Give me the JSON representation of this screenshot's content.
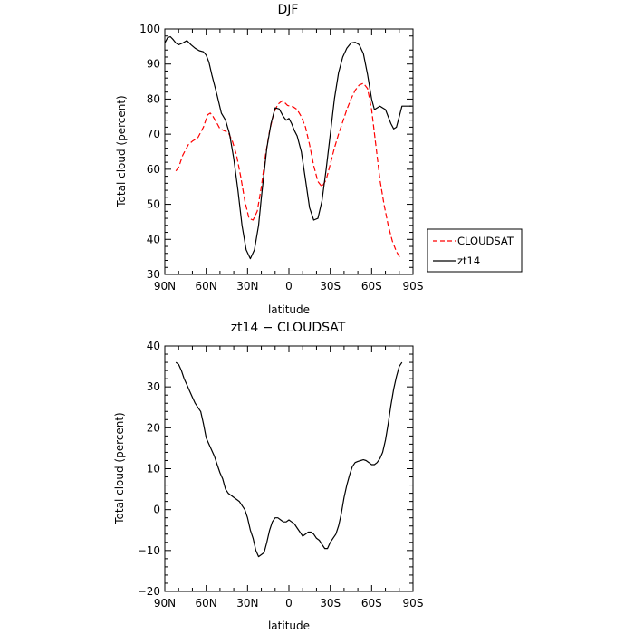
{
  "chart_data": [
    {
      "type": "line",
      "title": "DJF",
      "xlabel": "latitude",
      "ylabel": "Total cloud (percent)",
      "xlim": [
        90,
        -90
      ],
      "ylim": [
        30,
        100
      ],
      "x_ticks": [
        90,
        60,
        30,
        0,
        -30,
        -60,
        -90
      ],
      "x_tick_labels": [
        "90N",
        "60N",
        "30N",
        "0",
        "30S",
        "60S",
        "90S"
      ],
      "y_ticks": [
        30,
        40,
        50,
        60,
        70,
        80,
        90,
        100
      ],
      "y_tick_labels": [
        "30",
        "40",
        "50",
        "60",
        "70",
        "80",
        "90",
        "100"
      ],
      "grid": false,
      "legend": "right",
      "series": [
        {
          "name": "CLOUDSAT",
          "color": "#ff0000",
          "dash": "dashed",
          "x": [
            82,
            80,
            77,
            73,
            70,
            66,
            62,
            59,
            57,
            55,
            52,
            50,
            47,
            44,
            41,
            38,
            35,
            32,
            29,
            26,
            23,
            20,
            17,
            14,
            11,
            8,
            5,
            3,
            1,
            -1,
            -3,
            -6,
            -9,
            -12,
            -15,
            -18,
            -21,
            -24,
            -27,
            -30,
            -33,
            -36,
            -39,
            -42,
            -45,
            -48,
            -51,
            -54,
            -57,
            -60,
            -63,
            -66,
            -69,
            -72,
            -75,
            -78,
            -81
          ],
          "y": [
            59.5,
            60.5,
            64,
            67,
            68,
            69,
            72,
            75.5,
            76,
            75,
            73,
            71.5,
            71,
            70.5,
            68,
            64,
            58,
            51,
            46,
            45.5,
            48,
            55,
            64,
            71,
            76,
            78.5,
            79.5,
            79,
            78.2,
            78,
            77.8,
            77,
            75,
            72,
            67,
            61,
            56.5,
            55,
            57,
            61.5,
            66,
            70,
            73.5,
            77,
            80,
            82.5,
            84,
            84.5,
            83,
            77,
            67,
            57,
            50,
            44,
            39.5,
            36.5,
            34.5
          ]
        },
        {
          "name": "zt14",
          "color": "#000000",
          "dash": "solid",
          "x": [
            90,
            88,
            86,
            84,
            82,
            80,
            77,
            74,
            71,
            68,
            65,
            62,
            60,
            58,
            56,
            54,
            52,
            49,
            46,
            43,
            40,
            37,
            34,
            31,
            28,
            25,
            22,
            20,
            18,
            16,
            13,
            10,
            7,
            4,
            2,
            0,
            -2,
            -4,
            -6,
            -9,
            -12,
            -15,
            -18,
            -21,
            -24,
            -27,
            -30,
            -33,
            -36,
            -39,
            -42,
            -45,
            -48,
            -51,
            -54,
            -57,
            -60,
            -62,
            -64,
            -66,
            -68,
            -70,
            -72,
            -74,
            -76,
            -78,
            -80,
            -82,
            -84,
            -86,
            -88,
            -89
          ],
          "y": [
            96,
            97.5,
            97.8,
            97,
            96,
            95.5,
            96,
            96.7,
            95.5,
            94.5,
            93.8,
            93.5,
            92.5,
            90.5,
            87,
            84,
            81,
            76,
            74,
            70,
            63,
            54,
            44,
            37,
            34.5,
            37,
            44,
            52,
            59,
            66,
            73,
            77.5,
            77.2,
            75,
            74,
            74.5,
            73,
            71,
            69.5,
            65,
            57,
            49,
            45.5,
            46,
            51,
            60,
            70,
            80,
            87.5,
            92,
            94.5,
            96,
            96.2,
            95.5,
            93,
            87,
            80,
            77,
            77.5,
            78,
            77.5,
            77,
            75,
            73,
            71.5,
            72,
            75,
            78,
            78,
            78,
            78,
            78
          ]
        }
      ]
    },
    {
      "type": "line",
      "title": "zt14 − CLOUDSAT",
      "xlabel": "latitude",
      "ylabel": "Total cloud (percent)",
      "xlim": [
        90,
        -90
      ],
      "ylim": [
        -20,
        40
      ],
      "x_ticks": [
        90,
        60,
        30,
        0,
        -30,
        -60,
        -90
      ],
      "x_tick_labels": [
        "90N",
        "60N",
        "30N",
        "0",
        "30S",
        "60S",
        "90S"
      ],
      "y_ticks": [
        -20,
        -10,
        0,
        10,
        20,
        30,
        40
      ],
      "y_tick_labels": [
        "−20",
        "−10",
        "0",
        "10",
        "20",
        "30",
        "40"
      ],
      "grid": false,
      "series": [
        {
          "color": "#000000",
          "dash": "solid",
          "x": [
            82,
            80,
            78,
            76,
            74,
            72,
            70,
            68,
            66,
            64,
            62,
            60,
            58,
            56,
            54,
            52,
            50,
            48,
            46,
            44,
            42,
            40,
            38,
            36,
            34,
            32,
            30,
            28,
            26,
            24,
            22,
            20,
            18,
            16,
            14,
            12,
            10,
            8,
            6,
            4,
            2,
            0,
            -2,
            -4,
            -6,
            -8,
            -10,
            -12,
            -14,
            -16,
            -18,
            -20,
            -22,
            -24,
            -26,
            -28,
            -30,
            -32,
            -34,
            -36,
            -38,
            -40,
            -42,
            -44,
            -46,
            -48,
            -50,
            -52,
            -54,
            -56,
            -58,
            -60,
            -62,
            -64,
            -66,
            -68,
            -70,
            -72,
            -74,
            -76,
            -78,
            -80,
            -82
          ],
          "y": [
            36,
            35.5,
            34,
            32,
            30.5,
            29,
            27.5,
            26,
            25,
            24,
            21,
            17.5,
            16,
            14.5,
            13,
            11,
            9,
            7.5,
            5,
            4,
            3.5,
            3,
            2.5,
            2,
            1,
            0,
            -2,
            -5,
            -7,
            -10,
            -11.5,
            -11,
            -10.5,
            -8,
            -5,
            -3,
            -2,
            -2,
            -2.5,
            -3,
            -3,
            -2.5,
            -3,
            -3.5,
            -4.5,
            -5.5,
            -6.5,
            -6,
            -5.5,
            -5.5,
            -6,
            -7,
            -7.5,
            -8.5,
            -9.5,
            -9.5,
            -8,
            -7,
            -6,
            -4,
            -1,
            3,
            6,
            8.5,
            10.5,
            11.5,
            11.8,
            12,
            12.2,
            12,
            11.5,
            11,
            11,
            11.5,
            12.5,
            14,
            17,
            21,
            25.5,
            29.5,
            32.5,
            35,
            36
          ]
        }
      ]
    }
  ]
}
